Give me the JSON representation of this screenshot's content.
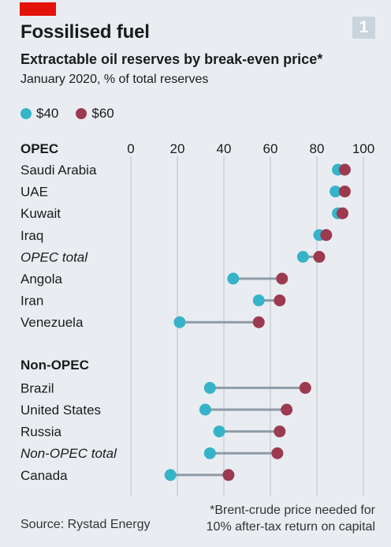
{
  "title": "Fossilised fuel",
  "subtitle": "Extractable oil reserves by break-even price*",
  "subsubtitle": "January 2020, % of total reserves",
  "badge": "1",
  "source": "Source: Rystad Energy",
  "footnote_line1": "*Brent-crude price needed for",
  "footnote_line2": "10% after-tax return on capital",
  "colors": {
    "s40": "#37b3c9",
    "s60": "#9c3a50",
    "connector": "#8e9ba6",
    "grid": "#b7c2cb"
  },
  "chart_data": {
    "type": "dot-plot",
    "xlim": [
      0,
      100
    ],
    "ticks": [
      0,
      20,
      40,
      60,
      80,
      100
    ],
    "legend": [
      {
        "key": "s40",
        "label": "$40"
      },
      {
        "key": "s60",
        "label": "$60"
      }
    ],
    "groups": [
      {
        "name": "OPEC",
        "rows": [
          {
            "label": "Saudi Arabia",
            "italic": false,
            "s40": 89,
            "s60": 92
          },
          {
            "label": "UAE",
            "italic": false,
            "s40": 88,
            "s60": 92
          },
          {
            "label": "Kuwait",
            "italic": false,
            "s40": 89,
            "s60": 91
          },
          {
            "label": "Iraq",
            "italic": false,
            "s40": 81,
            "s60": 84
          },
          {
            "label": "OPEC total",
            "italic": true,
            "s40": 74,
            "s60": 81
          },
          {
            "label": "Angola",
            "italic": false,
            "s40": 44,
            "s60": 65
          },
          {
            "label": "Iran",
            "italic": false,
            "s40": 55,
            "s60": 64
          },
          {
            "label": "Venezuela",
            "italic": false,
            "s40": 21,
            "s60": 55
          }
        ]
      },
      {
        "name": "Non-OPEC",
        "rows": [
          {
            "label": "Brazil",
            "italic": false,
            "s40": 34,
            "s60": 75
          },
          {
            "label": "United States",
            "italic": false,
            "s40": 32,
            "s60": 67
          },
          {
            "label": "Russia",
            "italic": false,
            "s40": 38,
            "s60": 64
          },
          {
            "label": "Non-OPEC total",
            "italic": true,
            "s40": 34,
            "s60": 63
          },
          {
            "label": "Canada",
            "italic": false,
            "s40": 17,
            "s60": 42
          }
        ]
      }
    ]
  }
}
